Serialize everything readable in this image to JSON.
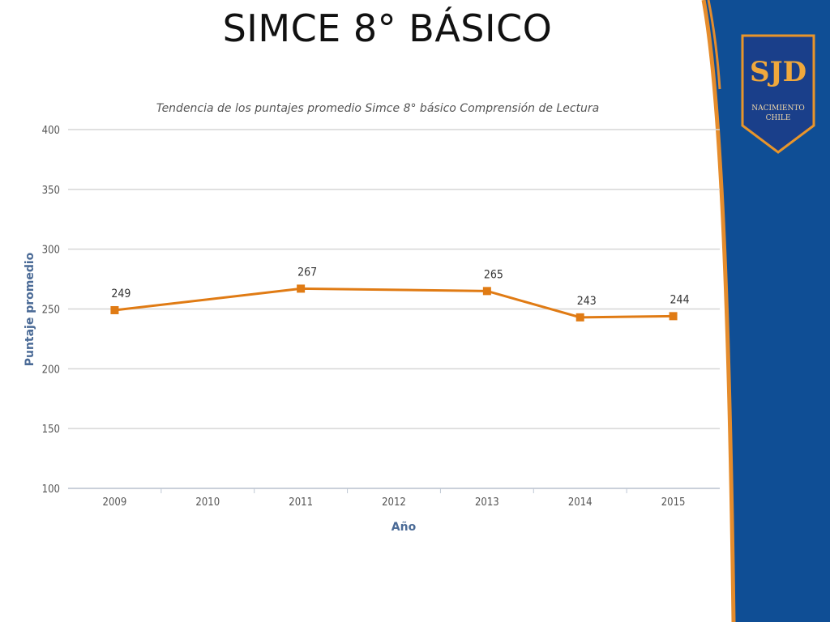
{
  "slide": {
    "title": "SIMCE 8° BÁSICO"
  },
  "logo": {
    "initials": "SJD",
    "line1": "NACIMIENTO",
    "line2": "CHILE",
    "colors": {
      "shield": "#1a3f8a",
      "border": "#e9952a",
      "text": "#f0a83c"
    }
  },
  "theme": {
    "band": "#0f4e95",
    "stripe": "#e58c2c",
    "series": "#e07b14",
    "grid": "#d6d6d6"
  },
  "chart_data": {
    "type": "line",
    "title": "Tendencia de los puntajes promedio Simce 8° básico Comprensión de Lectura",
    "xlabel": "Año",
    "ylabel": "Puntaje promedio",
    "categories": [
      "2009",
      "2010",
      "2011",
      "2012",
      "2013",
      "2014",
      "2015"
    ],
    "series": [
      {
        "values": [
          249,
          null,
          267,
          null,
          265,
          243,
          244
        ],
        "labels": [
          "249",
          "",
          "267",
          "",
          "265",
          "243",
          "244"
        ]
      }
    ],
    "ylim": [
      100,
      400
    ],
    "yticks": [
      "100",
      "150",
      "200",
      "250",
      "300",
      "350",
      "400"
    ],
    "grid": true
  }
}
